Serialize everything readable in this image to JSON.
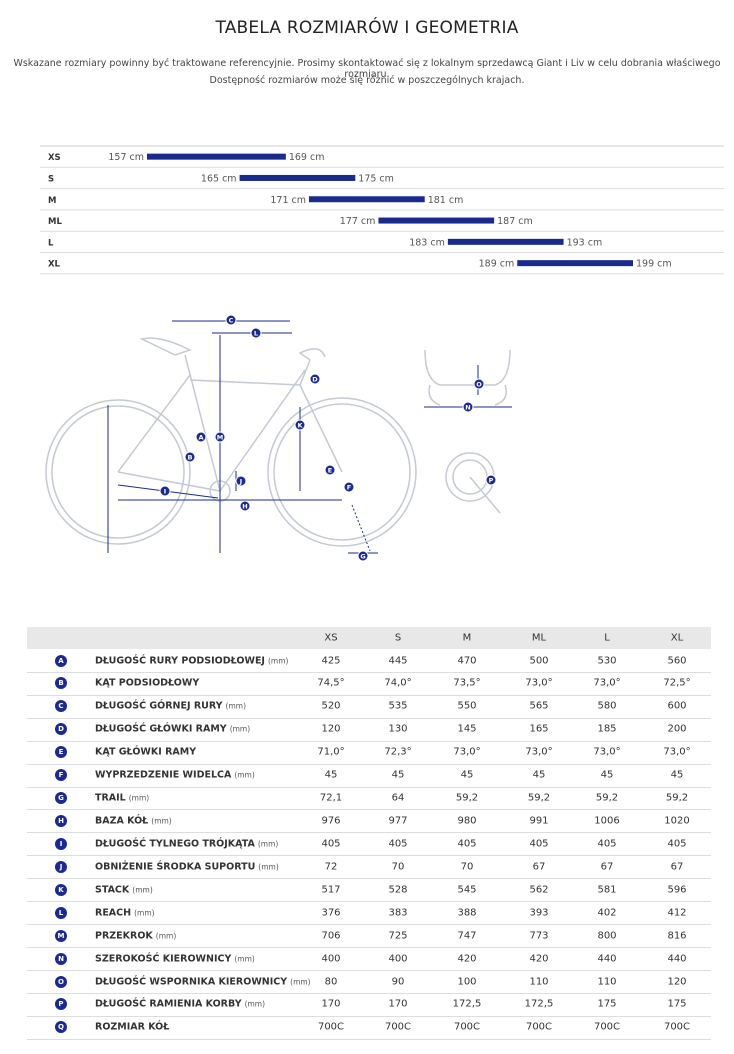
{
  "header": {
    "title": "TABELA ROZMIARÓW I GEOMETRIA",
    "note_lines": [
      "Wskazane rozmiary powinny być traktowane referencyjnie. Prosimy skontaktować się z lokalnym sprzedawcą Giant i Liv w celu dobrania właściwego rozmiaru.",
      "Dostępność rozmiarów może się różnić w poszczególnych krajach."
    ]
  },
  "size_chart": {
    "rows": [
      {
        "size": "XS",
        "min": {
          "value": 157,
          "label": "157 cm"
        },
        "max": {
          "value": 169,
          "label": "169 cm"
        }
      },
      {
        "size": "S",
        "min": {
          "value": 165,
          "label": "165 cm"
        },
        "max": {
          "value": 175,
          "label": "175 cm"
        }
      },
      {
        "size": "M",
        "min": {
          "value": 171,
          "label": "171 cm"
        },
        "max": {
          "value": 181,
          "label": "181 cm"
        }
      },
      {
        "size": "ML",
        "min": {
          "value": 177,
          "label": "177 cm"
        },
        "max": {
          "value": 187,
          "label": "187 cm"
        }
      },
      {
        "size": "L",
        "min": {
          "value": 183,
          "label": "183 cm"
        },
        "max": {
          "value": 193,
          "label": "193 cm"
        }
      },
      {
        "size": "XL",
        "min": {
          "value": 189,
          "label": "189 cm"
        },
        "max": {
          "value": 199,
          "label": "199 cm"
        }
      }
    ]
  },
  "geometry": {
    "columns": [
      "XS",
      "S",
      "M",
      "ML",
      "L",
      "XL"
    ],
    "rows": [
      {
        "letter": "A",
        "name": "DŁUGOŚĆ RURY PODSIODŁOWEJ",
        "unit": "(mm)",
        "values": [
          "425",
          "445",
          "470",
          "500",
          "530",
          "560"
        ]
      },
      {
        "letter": "B",
        "name": "KĄT PODSIODŁOWY",
        "values": [
          "74,5°",
          "74,0°",
          "73,5°",
          "73,0°",
          "73,0°",
          "72,5°"
        ]
      },
      {
        "letter": "C",
        "name": "DŁUGOŚĆ GÓRNEJ RURY",
        "unit": "(mm)",
        "values": [
          "520",
          "535",
          "550",
          "565",
          "580",
          "600"
        ]
      },
      {
        "letter": "D",
        "name": "DŁUGOŚĆ GŁÓWKI RAMY",
        "unit": "(mm)",
        "values": [
          "120",
          "130",
          "145",
          "165",
          "185",
          "200"
        ]
      },
      {
        "letter": "E",
        "name": "KĄT GŁÓWKI RAMY",
        "values": [
          "71,0°",
          "72,3°",
          "73,0°",
          "73,0°",
          "73,0°",
          "73,0°"
        ]
      },
      {
        "letter": "F",
        "name": "WYPRZEDZENIE WIDELCA",
        "unit": "(mm)",
        "values": [
          "45",
          "45",
          "45",
          "45",
          "45",
          "45"
        ]
      },
      {
        "letter": "G",
        "name": "TRAIL",
        "unit": "(mm)",
        "values": [
          "72,1",
          "64",
          "59,2",
          "59,2",
          "59,2",
          "59,2"
        ]
      },
      {
        "letter": "H",
        "name": "BAZA KÓŁ",
        "unit": "(mm)",
        "values": [
          "976",
          "977",
          "980",
          "991",
          "1006",
          "1020"
        ]
      },
      {
        "letter": "I",
        "name": "DŁUGOŚĆ TYLNEGO TRÓJKĄTA",
        "unit": "(mm)",
        "values": [
          "405",
          "405",
          "405",
          "405",
          "405",
          "405"
        ]
      },
      {
        "letter": "J",
        "name": "OBNIŻENIE ŚRODKA SUPORTU",
        "unit": "(mm)",
        "values": [
          "72",
          "70",
          "70",
          "67",
          "67",
          "67"
        ]
      },
      {
        "letter": "K",
        "name": "STACK",
        "unit": "(mm)",
        "values": [
          "517",
          "528",
          "545",
          "562",
          "581",
          "596"
        ]
      },
      {
        "letter": "L",
        "name": "REACH",
        "unit": "(mm)",
        "values": [
          "376",
          "383",
          "388",
          "393",
          "402",
          "412"
        ]
      },
      {
        "letter": "M",
        "name": "PRZEKROK",
        "unit": "(mm)",
        "values": [
          "706",
          "725",
          "747",
          "773",
          "800",
          "816"
        ]
      },
      {
        "letter": "N",
        "name": "SZEROKOŚĆ KIEROWNICY",
        "unit": "(mm)",
        "values": [
          "400",
          "400",
          "420",
          "420",
          "440",
          "440"
        ]
      },
      {
        "letter": "O",
        "name": "DŁUGOŚĆ WSPORNIKA KIEROWNICY",
        "unit": "(mm)",
        "values": [
          "80",
          "90",
          "100",
          "110",
          "110",
          "120"
        ]
      },
      {
        "letter": "P",
        "name": "DŁUGOŚĆ RAMIENIA KORBY",
        "unit": "(mm)",
        "values": [
          "170",
          "170",
          "172,5",
          "172,5",
          "175",
          "175"
        ]
      },
      {
        "letter": "Q",
        "name": "ROZMIAR KÓŁ",
        "values": [
          "700C",
          "700C",
          "700C",
          "700C",
          "700C",
          "700C"
        ]
      }
    ]
  }
}
